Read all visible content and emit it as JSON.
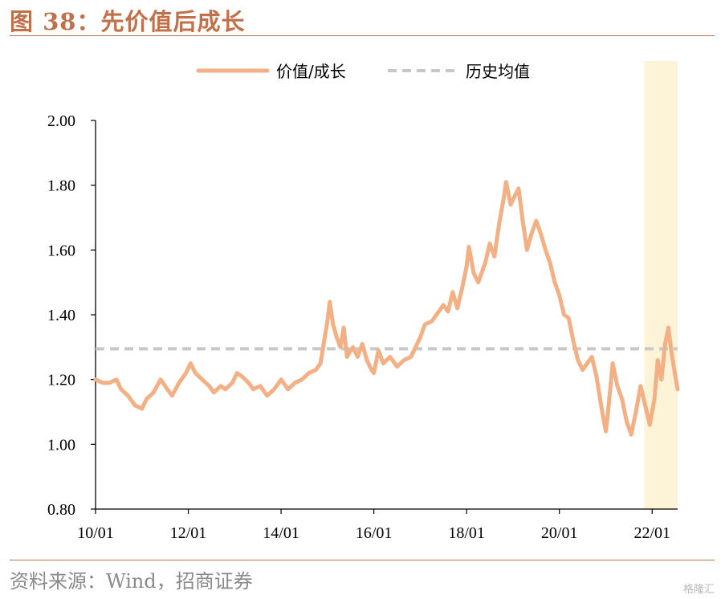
{
  "title": "图 38：先价值后成长",
  "source": "资料来源：Wind，招商证券",
  "watermark": "格隆汇",
  "colors": {
    "accent": "#c0704a",
    "series_main": "#f2b084",
    "series_mean": "#c8c8c8",
    "highlight": "#fdf3d6"
  },
  "chart_data": {
    "type": "line",
    "xlabel": "",
    "ylabel": "",
    "ylim": [
      0.8,
      2.0
    ],
    "xlim": [
      2010.0,
      2022.55
    ],
    "grid": false,
    "legend_position": "top",
    "x_ticks": [
      "10/01",
      "12/01",
      "14/01",
      "16/01",
      "18/01",
      "20/01",
      "22/01"
    ],
    "y_ticks": [
      "0.80",
      "1.00",
      "1.20",
      "1.40",
      "1.60",
      "1.80",
      "2.00"
    ],
    "highlight_band": [
      2021.83,
      2022.55
    ],
    "series": [
      {
        "name": "价值/成长",
        "style": "solid",
        "points": [
          [
            2010.0,
            1.2
          ],
          [
            2010.15,
            1.19
          ],
          [
            2010.3,
            1.19
          ],
          [
            2010.45,
            1.2
          ],
          [
            2010.55,
            1.17
          ],
          [
            2010.7,
            1.15
          ],
          [
            2010.85,
            1.12
          ],
          [
            2011.0,
            1.11
          ],
          [
            2011.1,
            1.14
          ],
          [
            2011.25,
            1.16
          ],
          [
            2011.4,
            1.2
          ],
          [
            2011.55,
            1.17
          ],
          [
            2011.65,
            1.15
          ],
          [
            2011.8,
            1.19
          ],
          [
            2011.95,
            1.22
          ],
          [
            2012.05,
            1.25
          ],
          [
            2012.15,
            1.22
          ],
          [
            2012.3,
            1.2
          ],
          [
            2012.45,
            1.18
          ],
          [
            2012.55,
            1.16
          ],
          [
            2012.7,
            1.18
          ],
          [
            2012.8,
            1.17
          ],
          [
            2012.95,
            1.19
          ],
          [
            2013.05,
            1.22
          ],
          [
            2013.15,
            1.21
          ],
          [
            2013.3,
            1.19
          ],
          [
            2013.4,
            1.17
          ],
          [
            2013.55,
            1.18
          ],
          [
            2013.7,
            1.15
          ],
          [
            2013.85,
            1.17
          ],
          [
            2014.0,
            1.2
          ],
          [
            2014.15,
            1.17
          ],
          [
            2014.3,
            1.19
          ],
          [
            2014.45,
            1.2
          ],
          [
            2014.6,
            1.22
          ],
          [
            2014.75,
            1.23
          ],
          [
            2014.85,
            1.25
          ],
          [
            2014.93,
            1.32
          ],
          [
            2015.0,
            1.38
          ],
          [
            2015.05,
            1.44
          ],
          [
            2015.12,
            1.37
          ],
          [
            2015.2,
            1.33
          ],
          [
            2015.28,
            1.3
          ],
          [
            2015.35,
            1.36
          ],
          [
            2015.42,
            1.27
          ],
          [
            2015.55,
            1.3
          ],
          [
            2015.65,
            1.27
          ],
          [
            2015.75,
            1.31
          ],
          [
            2015.85,
            1.26
          ],
          [
            2015.95,
            1.23
          ],
          [
            2016.0,
            1.22
          ],
          [
            2016.1,
            1.29
          ],
          [
            2016.2,
            1.25
          ],
          [
            2016.35,
            1.27
          ],
          [
            2016.5,
            1.24
          ],
          [
            2016.65,
            1.26
          ],
          [
            2016.8,
            1.27
          ],
          [
            2016.9,
            1.3
          ],
          [
            2017.0,
            1.33
          ],
          [
            2017.1,
            1.37
          ],
          [
            2017.25,
            1.38
          ],
          [
            2017.35,
            1.4
          ],
          [
            2017.5,
            1.43
          ],
          [
            2017.6,
            1.41
          ],
          [
            2017.7,
            1.47
          ],
          [
            2017.8,
            1.42
          ],
          [
            2017.9,
            1.48
          ],
          [
            2018.0,
            1.55
          ],
          [
            2018.05,
            1.61
          ],
          [
            2018.15,
            1.53
          ],
          [
            2018.25,
            1.5
          ],
          [
            2018.4,
            1.56
          ],
          [
            2018.5,
            1.62
          ],
          [
            2018.6,
            1.58
          ],
          [
            2018.7,
            1.68
          ],
          [
            2018.8,
            1.76
          ],
          [
            2018.85,
            1.81
          ],
          [
            2018.95,
            1.74
          ],
          [
            2019.05,
            1.77
          ],
          [
            2019.12,
            1.79
          ],
          [
            2019.2,
            1.7
          ],
          [
            2019.3,
            1.6
          ],
          [
            2019.4,
            1.65
          ],
          [
            2019.5,
            1.69
          ],
          [
            2019.6,
            1.65
          ],
          [
            2019.7,
            1.6
          ],
          [
            2019.8,
            1.56
          ],
          [
            2019.9,
            1.5
          ],
          [
            2020.0,
            1.46
          ],
          [
            2020.1,
            1.4
          ],
          [
            2020.2,
            1.39
          ],
          [
            2020.3,
            1.32
          ],
          [
            2020.4,
            1.26
          ],
          [
            2020.5,
            1.23
          ],
          [
            2020.6,
            1.25
          ],
          [
            2020.7,
            1.27
          ],
          [
            2020.8,
            1.21
          ],
          [
            2020.9,
            1.12
          ],
          [
            2021.0,
            1.04
          ],
          [
            2021.05,
            1.1
          ],
          [
            2021.15,
            1.25
          ],
          [
            2021.25,
            1.18
          ],
          [
            2021.35,
            1.14
          ],
          [
            2021.45,
            1.07
          ],
          [
            2021.55,
            1.03
          ],
          [
            2021.65,
            1.1
          ],
          [
            2021.75,
            1.18
          ],
          [
            2021.85,
            1.12
          ],
          [
            2021.95,
            1.06
          ],
          [
            2022.05,
            1.14
          ],
          [
            2022.12,
            1.26
          ],
          [
            2022.2,
            1.2
          ],
          [
            2022.28,
            1.31
          ],
          [
            2022.35,
            1.36
          ],
          [
            2022.42,
            1.28
          ],
          [
            2022.5,
            1.21
          ],
          [
            2022.55,
            1.17
          ]
        ]
      },
      {
        "name": "历史均值",
        "style": "dashed",
        "points": [
          [
            2010.0,
            1.295
          ],
          [
            2022.55,
            1.295
          ]
        ]
      }
    ]
  }
}
